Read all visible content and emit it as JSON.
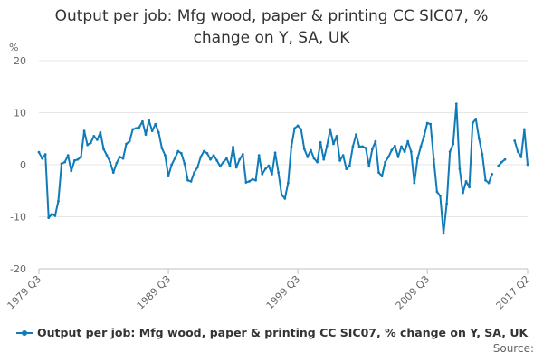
{
  "chart_data": {
    "type": "line",
    "title": "Output per job: Mfg wood, paper & printing CC SIC07, % change on Y, SA, UK",
    "ylabel": "%",
    "xlabel": "",
    "ylim": [
      -20,
      20
    ],
    "yticks": [
      "20",
      "10",
      "0",
      "-10",
      "-20"
    ],
    "xticks": [
      "1979 Q3",
      "1989 Q3",
      "1999 Q3",
      "2009 Q3",
      "2017 Q2"
    ],
    "grid": "horizontal",
    "legend_position": "bottom-left",
    "series": [
      {
        "name": "Output per job: Mfg wood, paper & printing CC SIC07, % change on Y, SA, UK",
        "color": "#0f7bb8",
        "start": "1979 Q3",
        "values": [
          2.4,
          1.2,
          2.0,
          -10.2,
          -9.5,
          -9.8,
          -7.0,
          0.2,
          0.5,
          1.8,
          -1.2,
          0.8,
          1.0,
          1.5,
          6.5,
          3.8,
          4.2,
          5.5,
          4.8,
          6.2,
          3.0,
          1.8,
          0.5,
          -1.5,
          0.3,
          1.5,
          1.2,
          4.0,
          4.5,
          6.8,
          7.0,
          7.2,
          8.3,
          5.8,
          8.5,
          6.5,
          7.8,
          6.2,
          3.2,
          1.8,
          -2.2,
          0.0,
          1.2,
          2.6,
          2.2,
          0.2,
          -3.0,
          -3.2,
          -1.5,
          -0.5,
          1.5,
          2.6,
          2.2,
          1.0,
          1.8,
          0.8,
          -0.3,
          0.5,
          1.2,
          -0.2,
          3.4,
          -0.5,
          1.0,
          2.0,
          -3.4,
          -3.2,
          -2.8,
          -3.0,
          1.8,
          -1.8,
          -0.8,
          -0.2,
          -1.8,
          2.3,
          -1.5,
          -5.8,
          -6.5,
          -3.5,
          3.5,
          7.0,
          7.5,
          6.8,
          3.0,
          1.5,
          2.8,
          1.2,
          0.5,
          4.3,
          1.0,
          3.6,
          6.8,
          4.0,
          5.5,
          0.8,
          1.8,
          -0.8,
          -0.2,
          3.5,
          5.8,
          3.5,
          3.5,
          3.2,
          -0.3,
          3.0,
          4.5,
          -1.5,
          -2.2,
          0.5,
          1.5,
          2.8,
          3.6,
          1.5,
          3.5,
          2.5,
          4.5,
          2.5,
          -3.5,
          1.2,
          3.5,
          5.5,
          8.0,
          7.8,
          1.0,
          -5.2,
          -6.0,
          -13.2,
          -7.5,
          2.5,
          4.0,
          11.7,
          -0.8,
          -5.4,
          -3.2,
          -4.3,
          8.0,
          8.8,
          5.0,
          2.0,
          -3.0,
          -3.5,
          -1.8,
          null,
          -0.2,
          0.5,
          1.0,
          null,
          null,
          4.6,
          2.5,
          1.5,
          6.8,
          0.0
        ]
      }
    ]
  },
  "legend": {
    "label": "Output per job: Mfg wood, paper & printing CC SIC07, % change on Y, SA, UK"
  },
  "source_label": "Source:"
}
